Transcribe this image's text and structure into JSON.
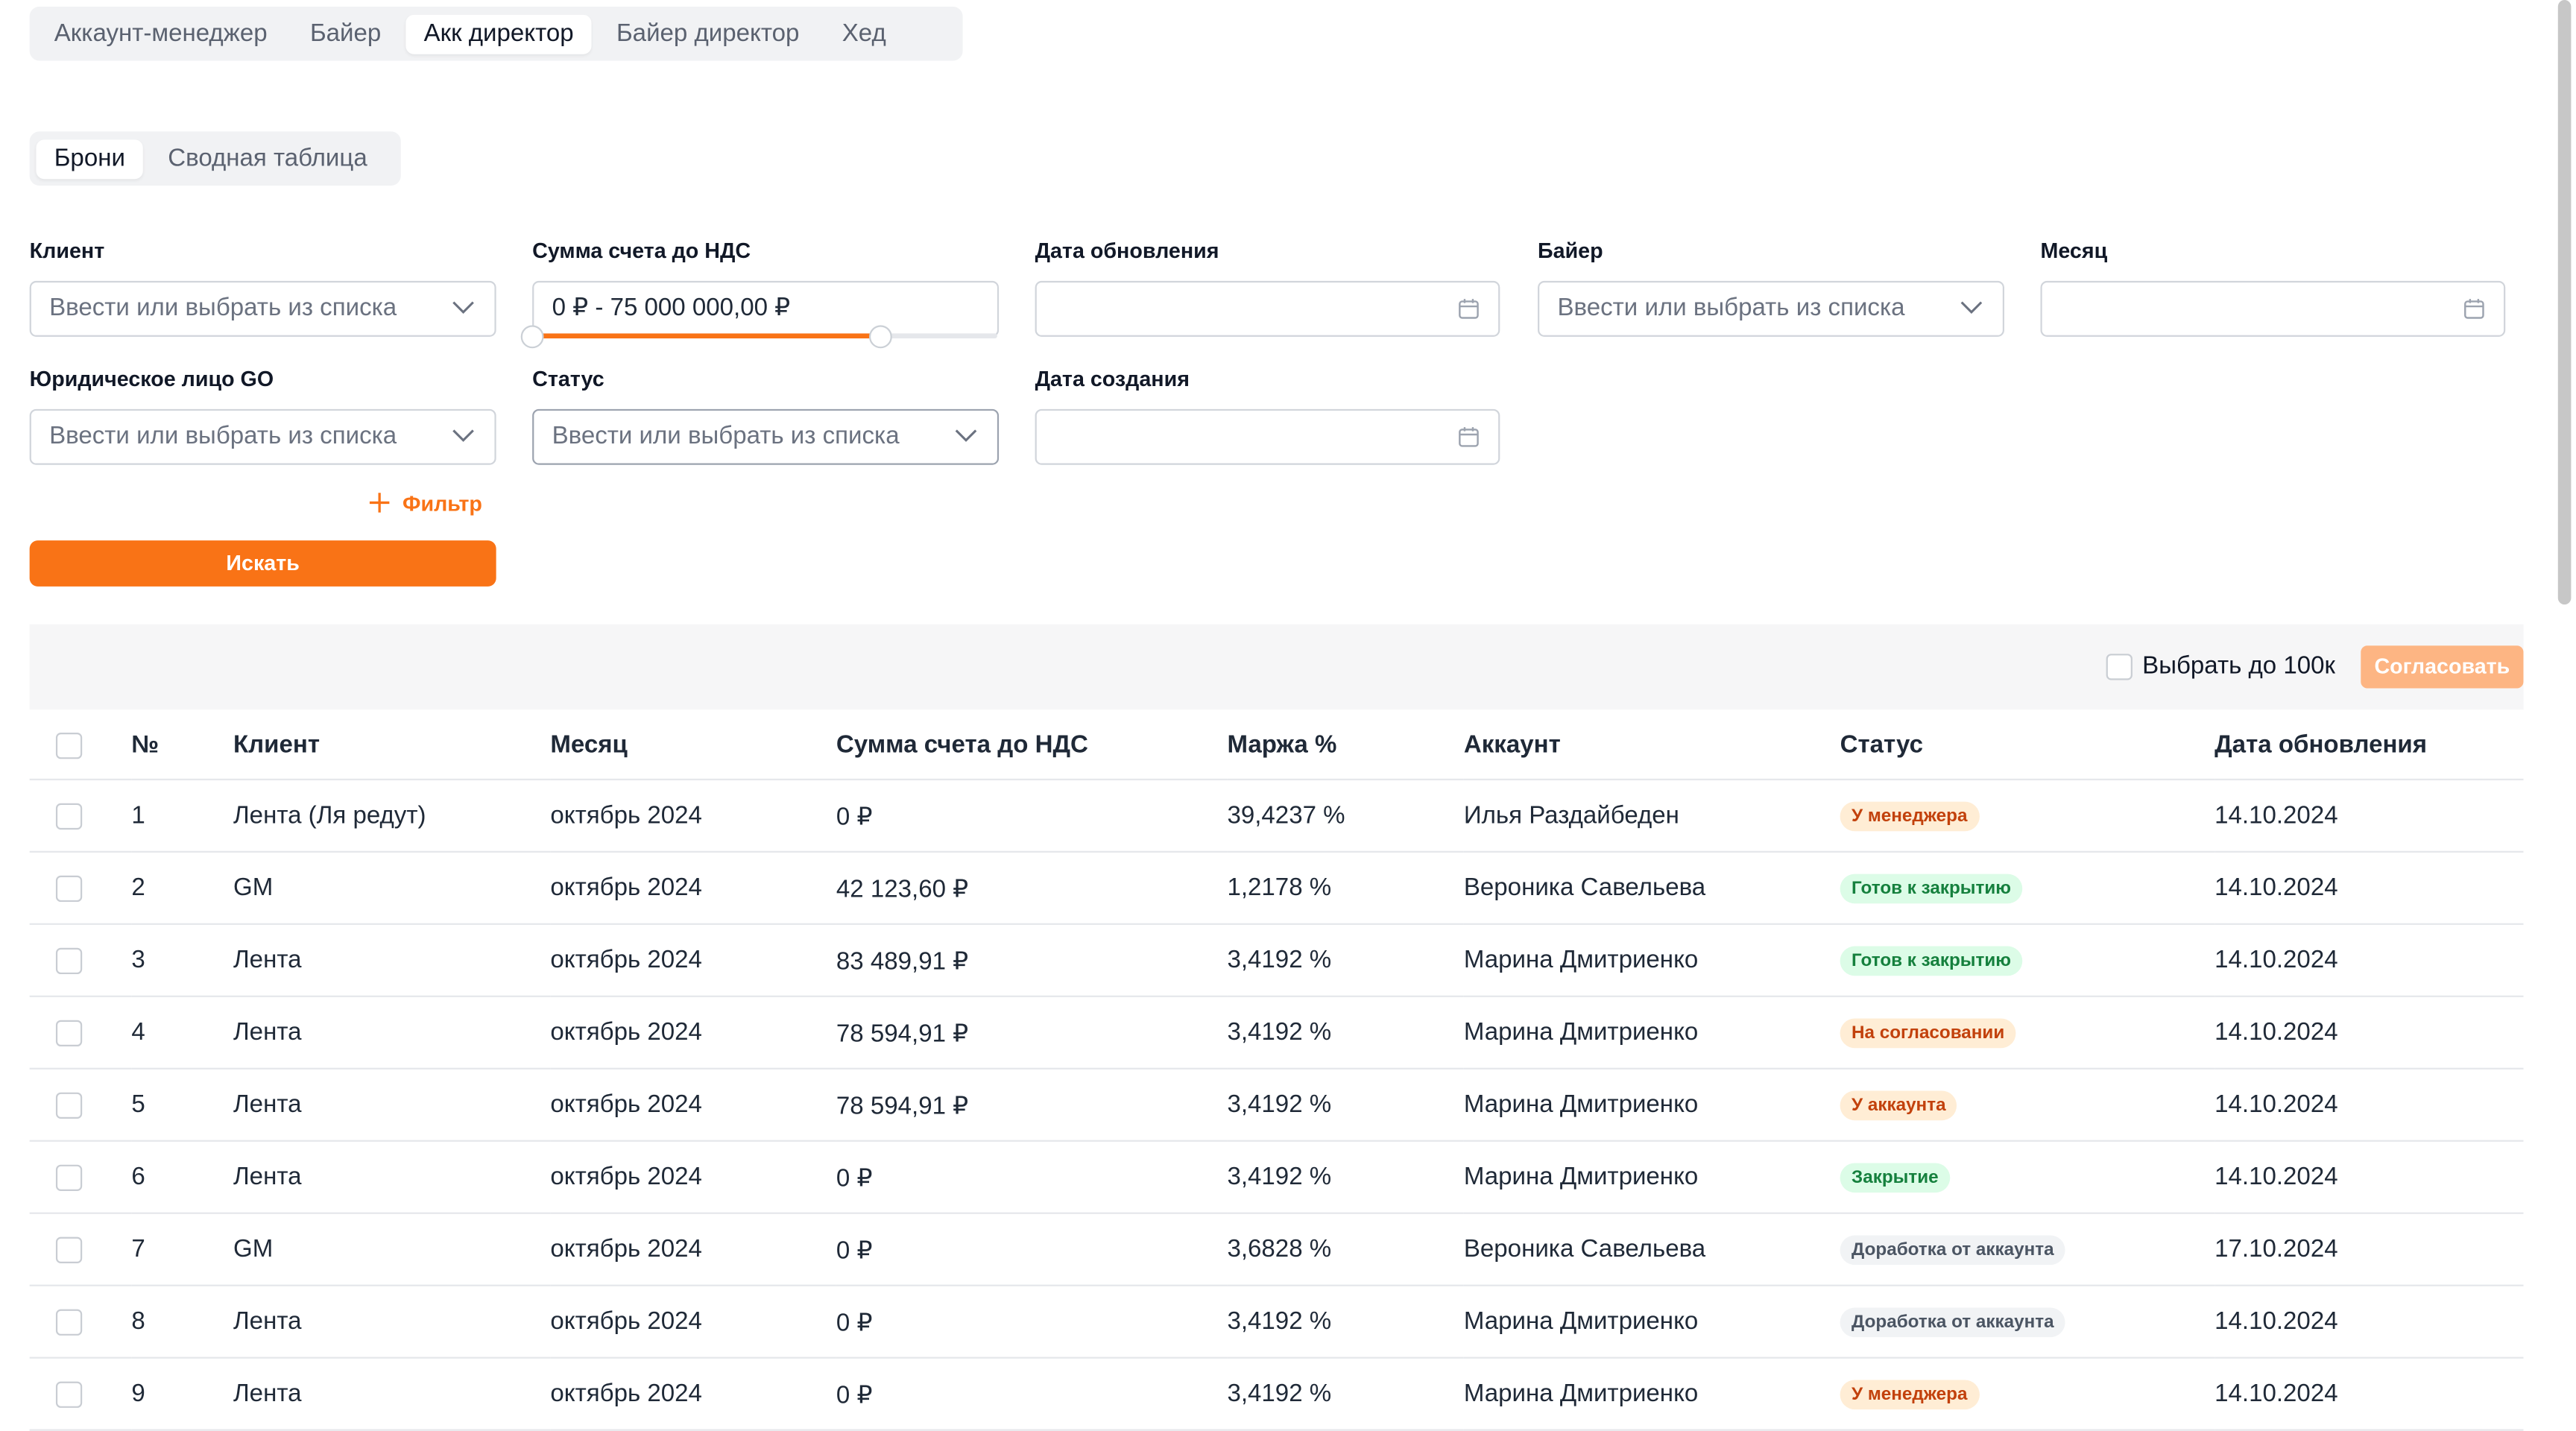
{
  "top_tabs": [
    "Аккаунт-менеджер",
    "Байер",
    "Акк директор",
    "Байер директор",
    "Хед"
  ],
  "sub_tabs": [
    "Брони",
    "Сводная таблица"
  ],
  "filters": {
    "client_label": "Клиент",
    "client_placeholder": "Ввести или выбрать из списка",
    "sum_label": "Сумма счета до НДС",
    "sum_value": "0 ₽ - 75 000 000,00 ₽",
    "sum_range_fill_fraction": 0.75,
    "updated_label": "Дата обновления",
    "buyer_label": "Байер",
    "buyer_placeholder": "Ввести или выбрать из списка",
    "month_label": "Месяц",
    "legal_label": "Юридическое лицо GO",
    "legal_placeholder": "Ввести или выбрать из списка",
    "status_label": "Статус",
    "status_placeholder": "Ввести или выбрать из списка",
    "created_label": "Дата создания",
    "add_filter_label": "Фильтр",
    "search_button": "Искать"
  },
  "toolbar": {
    "select_100k_label": "Выбрать до 100к",
    "approve_button": "Согласовать"
  },
  "table": {
    "headers": [
      "№",
      "Клиент",
      "Месяц",
      "Сумма счета до НДС",
      "Маржа %",
      "Аккаунт",
      "Статус",
      "Дата обновления"
    ],
    "rows": [
      {
        "n": "1",
        "client": "Лента (Ля редут)",
        "month": "октябрь 2024",
        "sum": "0 ₽",
        "margin": "39,4237 %",
        "account": "Илья Раздайбеден",
        "status": "У менеджера",
        "status_color": "orange",
        "date": "14.10.2024"
      },
      {
        "n": "2",
        "client": "GM",
        "month": "октябрь 2024",
        "sum": "42 123,60 ₽",
        "margin": "1,2178 %",
        "account": "Вероника Савельева",
        "status": "Готов к закрытию",
        "status_color": "green",
        "date": "14.10.2024"
      },
      {
        "n": "3",
        "client": "Лента",
        "month": "октябрь 2024",
        "sum": "83 489,91 ₽",
        "margin": "3,4192 %",
        "account": "Марина Дмитриенко",
        "status": "Готов к закрытию",
        "status_color": "green",
        "date": "14.10.2024"
      },
      {
        "n": "4",
        "client": "Лента",
        "month": "октябрь 2024",
        "sum": "78 594,91 ₽",
        "margin": "3,4192 %",
        "account": "Марина Дмитриенко",
        "status": "На согласовании",
        "status_color": "orange",
        "date": "14.10.2024"
      },
      {
        "n": "5",
        "client": "Лента",
        "month": "октябрь 2024",
        "sum": "78 594,91 ₽",
        "margin": "3,4192 %",
        "account": "Марина Дмитриенко",
        "status": "У аккаунта",
        "status_color": "orange",
        "date": "14.10.2024"
      },
      {
        "n": "6",
        "client": "Лента",
        "month": "октябрь 2024",
        "sum": "0 ₽",
        "margin": "3,4192 %",
        "account": "Марина Дмитриенко",
        "status": "Закрытие",
        "status_color": "green",
        "date": "14.10.2024"
      },
      {
        "n": "7",
        "client": "GM",
        "month": "октябрь 2024",
        "sum": "0 ₽",
        "margin": "3,6828 %",
        "account": "Вероника Савельева",
        "status": "Доработка от аккаунта",
        "status_color": "gray",
        "date": "17.10.2024"
      },
      {
        "n": "8",
        "client": "Лента",
        "month": "октябрь 2024",
        "sum": "0 ₽",
        "margin": "3,4192 %",
        "account": "Марина Дмитриенко",
        "status": "Доработка от аккаунта",
        "status_color": "gray",
        "date": "14.10.2024"
      },
      {
        "n": "9",
        "client": "Лента",
        "month": "октябрь 2024",
        "sum": "0 ₽",
        "margin": "3,4192 %",
        "account": "Марина Дмитриенко",
        "status": "У менеджера",
        "status_color": "orange",
        "date": "14.10.2024"
      }
    ]
  },
  "colors": {
    "accent": "#f97316",
    "accent_disabled": "#fdb583"
  }
}
